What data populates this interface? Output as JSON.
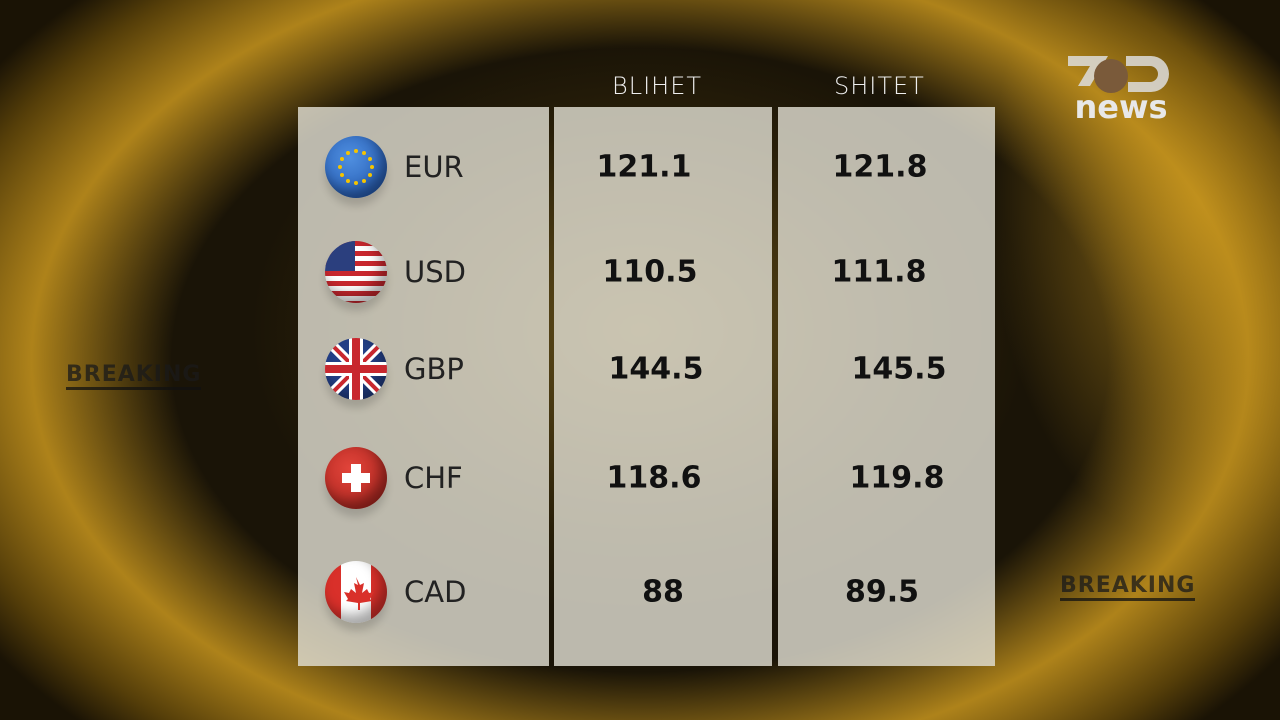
{
  "headers": {
    "buy": "BLIHET",
    "sell": "SHITET"
  },
  "logo": {
    "text": "news",
    "brand": "7"
  },
  "overlay": {
    "breaking_left": "BREAKING",
    "breaking_right": "BREAKING"
  },
  "rates": [
    {
      "code": "EUR",
      "buy": "121.1",
      "sell": "121.8",
      "flag": "eu-flag-icon"
    },
    {
      "code": "USD",
      "buy": "110.5",
      "sell": "111.8",
      "flag": "us-flag-icon"
    },
    {
      "code": "GBP",
      "buy": "144.5",
      "sell": "145.5",
      "flag": "uk-flag-icon"
    },
    {
      "code": "CHF",
      "buy": "118.6",
      "sell": "119.8",
      "flag": "ch-flag-icon"
    },
    {
      "code": "CAD",
      "buy": "88",
      "sell": "89.5",
      "flag": "ca-flag-icon"
    }
  ]
}
